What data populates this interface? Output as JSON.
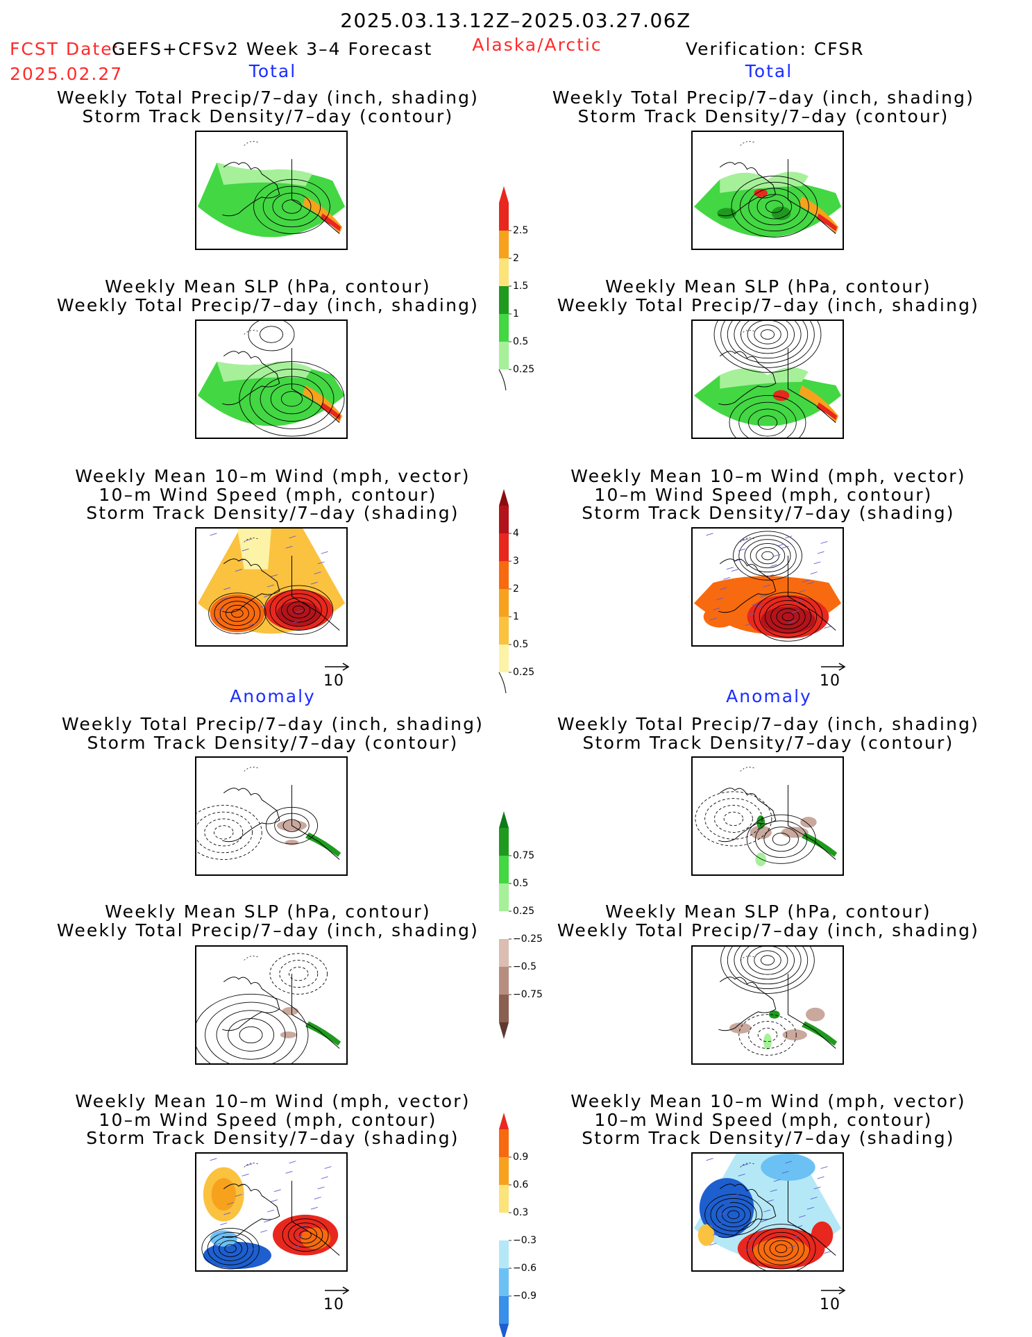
{
  "header": {
    "period": "2025.03.13.12Z–2025.03.27.06Z",
    "fcst_label": "FCST Date:",
    "fcst_date": "2025.02.27",
    "model": "GEFS+CFSv2 Week 3–4 Forecast",
    "region": "Alaska/Arctic",
    "verification": "Verification: CFSR"
  },
  "sections": {
    "total": "Total",
    "anomaly": "Anomaly"
  },
  "titles": {
    "precip_storm": [
      "Weekly Total Precip/7–day (inch, shading)",
      "Storm Track Density/7–day (contour)"
    ],
    "slp_precip": [
      "Weekly Mean SLP (hPa, contour)",
      "Weekly Total Precip/7–day (inch, shading)"
    ],
    "wind_storm": [
      "Weekly Mean 10–m Wind (mph, vector)",
      "10–m Wind Speed (mph, contour)",
      "Storm Track Density/7–day (shading)"
    ]
  },
  "vector_ref": "10",
  "colorbars": {
    "precip_total": {
      "labels": [
        "2.5",
        "2",
        "1.5",
        "1",
        "0.5",
        "0.25"
      ],
      "colors": [
        "#e8281e",
        "#f7a21d",
        "#fce37a",
        "#1f9a1f",
        "#43d743",
        "#a6f09a"
      ]
    },
    "storm_total": {
      "labels": [
        "4",
        "3",
        "2",
        "1",
        "0.5",
        "0.25"
      ],
      "colors": [
        "#b3141b",
        "#e8281e",
        "#f86a0f",
        "#f7a21d",
        "#fbc23f",
        "#fdf3a6"
      ],
      "top_color": "#8c0d10"
    },
    "precip_anom": {
      "labels": [
        "0.75",
        "0.5",
        "0.25",
        "−0.25",
        "−0.5",
        "−0.75"
      ],
      "colors": [
        "#1f9a1f",
        "#43d743",
        "#a6f09a",
        "#ffffff",
        "#dbbdb2",
        "#b78d80",
        "#8a5f50"
      ],
      "top_color": "#0f7a1a",
      "bottom_color": "#5e3a30"
    },
    "storm_anom": {
      "labels": [
        "0.9",
        "0.6",
        "0.3",
        "−0.3",
        "−0.6",
        "−0.9"
      ],
      "colors": [
        "#f86a0f",
        "#f7a21d",
        "#fce37a",
        "#ffffff",
        "#b5e8f6",
        "#6cc1f4",
        "#3a8fe8"
      ],
      "top_color": "#e8281e",
      "bottom_color": "#1e5fcf"
    }
  },
  "panel_colors": {
    "precip_light": "#a6f09a",
    "precip_mid": "#43d743",
    "precip_dark": "#1f9a1f",
    "hot": "#e8281e",
    "warm": "#f7a21d",
    "storm_dark": "#b3141b",
    "storm_red": "#e8281e",
    "storm_orange": "#f86a0f",
    "storm_light": "#fbc23f",
    "storm_pale": "#fdf3a6",
    "vector": "#5a5ad6",
    "anom_green": "#1f9a1f",
    "anom_brown": "#c9a89d",
    "anom_blue": "#1e5fcf",
    "anom_lightblue": "#b5e8f6",
    "anom_midblue": "#6cc1f4"
  }
}
